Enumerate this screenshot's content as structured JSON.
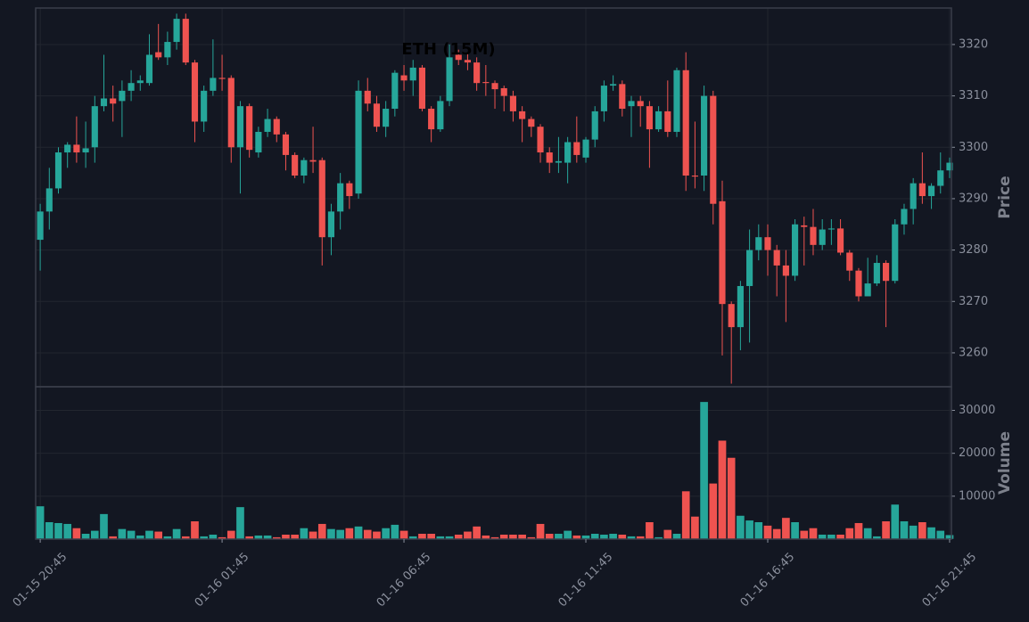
{
  "chart_data": [
    {
      "type": "candlestick",
      "title": "ETH (15M)",
      "ylabel": "Price",
      "up_color": "#26a69a",
      "down_color": "#ef5350",
      "grid": true,
      "ylim": [
        3253.4,
        3327.1
      ],
      "yticks": [
        3260,
        3270,
        3280,
        3290,
        3300,
        3310,
        3320
      ],
      "open": [
        3282,
        3287.5,
        3292,
        3299,
        3300.5,
        3299,
        3300,
        3308,
        3309.5,
        3309,
        3311,
        3312.5,
        3312.5,
        3318.5,
        3317.5,
        3320.5,
        3325,
        3316.5,
        3305,
        3311,
        3313.5,
        3313.5,
        3300,
        3308,
        3299,
        3303,
        3305.5,
        3302.5,
        3298.5,
        3294.5,
        3297.5,
        3297.5,
        3282.5,
        3287.5,
        3293,
        3291,
        3311,
        3308.5,
        3304,
        3307.5,
        3314,
        3313,
        3315.5,
        3307.5,
        3303.5,
        3309,
        3318,
        3317,
        3316.5,
        3312.7,
        3312.5,
        3311.5,
        3310,
        3307,
        3305.5,
        3304,
        3299,
        3297,
        3297,
        3301,
        3298,
        3301.5,
        3307,
        3312,
        3312.3,
        3308,
        3309,
        3308,
        3303.5,
        3307,
        3303,
        3315,
        3294.5,
        3294.5,
        3310,
        3289.5,
        3269.5,
        3265,
        3273,
        3280,
        3282.5,
        3280,
        3277,
        3275,
        3284.8,
        3284.5,
        3281,
        3284,
        3284.2,
        3279.5,
        3276,
        3271,
        3273.5,
        3277.5,
        3274,
        3285,
        3288,
        3293,
        3290.5,
        3292.5,
        3295.5
      ],
      "high": [
        3289,
        3296,
        3300,
        3301,
        3306,
        3305,
        3310,
        3318,
        3312,
        3313,
        3315,
        3314,
        3322,
        3324,
        3322.5,
        3326,
        3326,
        3317,
        3312,
        3321,
        3318,
        3314,
        3309,
        3308.5,
        3304,
        3307.5,
        3306,
        3303,
        3299,
        3298,
        3304,
        3298,
        3289,
        3295,
        3293.5,
        3313,
        3313.5,
        3310,
        3309,
        3315,
        3316,
        3317,
        3316,
        3308,
        3310,
        3320,
        3319,
        3318.5,
        3317.5,
        3316,
        3313,
        3312,
        3311,
        3308,
        3306,
        3304.5,
        3300,
        3302,
        3302,
        3306,
        3302,
        3308,
        3313,
        3314,
        3313,
        3310,
        3310,
        3309,
        3308,
        3313,
        3315.5,
        3318.5,
        3305,
        3312,
        3311,
        3293.5,
        3270,
        3274,
        3284,
        3285,
        3285,
        3281,
        3280,
        3286,
        3286.5,
        3288,
        3286,
        3286,
        3286,
        3280,
        3276.5,
        3278.5,
        3279,
        3278,
        3286,
        3289,
        3294,
        3299,
        3293,
        3299,
        3298
      ],
      "low": [
        3276,
        3284,
        3291,
        3296,
        3297,
        3296,
        3297,
        3307,
        3305,
        3302,
        3309,
        3311,
        3312,
        3317,
        3316,
        3319,
        3316,
        3301,
        3303,
        3310,
        3311,
        3297,
        3291,
        3298,
        3298,
        3302,
        3301,
        3295.5,
        3294,
        3293,
        3295,
        3277,
        3279,
        3284,
        3288,
        3290,
        3307,
        3303,
        3302,
        3306,
        3311,
        3310,
        3307,
        3301,
        3303,
        3308,
        3316,
        3315,
        3311,
        3310,
        3307.5,
        3307,
        3305,
        3301,
        3302,
        3297,
        3295,
        3295,
        3293,
        3297,
        3297,
        3300,
        3305,
        3311,
        3306,
        3302,
        3304,
        3296,
        3303,
        3302,
        3302,
        3291.5,
        3292,
        3291.5,
        3285,
        3259.5,
        3254,
        3260.5,
        3262,
        3278,
        3275,
        3271,
        3266,
        3274,
        3277,
        3279,
        3280,
        3281,
        3279,
        3274,
        3270,
        3271,
        3273,
        3265,
        3273.5,
        3283,
        3285,
        3289,
        3288,
        3291,
        3294
      ],
      "close": [
        3287.5,
        3292,
        3299,
        3300.5,
        3299,
        3299.8,
        3308,
        3309.5,
        3308.5,
        3311,
        3312.5,
        3313,
        3318,
        3317.5,
        3320.5,
        3325,
        3316.5,
        3305,
        3311,
        3313.5,
        3313.3,
        3300,
        3308,
        3299.5,
        3303,
        3305.5,
        3302.5,
        3298.5,
        3294.5,
        3297.5,
        3297.2,
        3282.5,
        3287.5,
        3293,
        3290.5,
        3311,
        3308.5,
        3304,
        3307.5,
        3314.5,
        3313,
        3315.5,
        3307.5,
        3303.5,
        3309,
        3317.5,
        3317,
        3316.5,
        3312.5,
        3312.5,
        3311.3,
        3310,
        3307,
        3305.5,
        3304,
        3299,
        3297,
        3297.3,
        3301,
        3298.5,
        3301.5,
        3307,
        3312,
        3312.3,
        3307.5,
        3309,
        3308,
        3303.5,
        3307,
        3303,
        3315,
        3294.5,
        3294.3,
        3310,
        3289,
        3269.5,
        3265,
        3273,
        3280,
        3282.5,
        3280,
        3277,
        3275,
        3285,
        3284.5,
        3281,
        3284,
        3284.2,
        3279.5,
        3276,
        3271,
        3273.5,
        3277.5,
        3274,
        3285,
        3288,
        3293,
        3290.5,
        3292.5,
        3295.5,
        3297
      ]
    },
    {
      "type": "bar",
      "ylabel": "Volume",
      "grid": true,
      "ylim": [
        0,
        35500
      ],
      "yticks": [
        10000,
        20000,
        30000
      ],
      "xlim": [
        -0.5,
        100.2
      ],
      "xticks": [
        {
          "value": 0,
          "label": "01-15 20:45"
        },
        {
          "value": 20,
          "label": "01-16 01:45"
        },
        {
          "value": 40,
          "label": "01-16 06:45"
        },
        {
          "value": 60,
          "label": "01-16 11:45"
        },
        {
          "value": 80,
          "label": "01-16 16:45"
        },
        {
          "value": 100,
          "label": "01-16 21:45"
        }
      ],
      "values": [
        7700,
        4000,
        3800,
        3600,
        2600,
        1300,
        2000,
        5900,
        700,
        2400,
        2000,
        900,
        2000,
        1800,
        700,
        2400,
        700,
        4200,
        700,
        1100,
        500,
        2000,
        7500,
        700,
        900,
        900,
        500,
        1100,
        1100,
        2600,
        1800,
        3600,
        2400,
        2200,
        2600,
        3000,
        2200,
        1800,
        2600,
        3400,
        2000,
        700,
        1300,
        1300,
        700,
        700,
        1100,
        1800,
        3000,
        900,
        500,
        1100,
        1100,
        1100,
        500,
        3600,
        1300,
        1300,
        2000,
        900,
        900,
        1300,
        1100,
        1300,
        1100,
        700,
        700,
        4000,
        500,
        2200,
        1300,
        11200,
        5300,
        32000,
        13000,
        23000,
        19000,
        5500,
        4400,
        4000,
        3200,
        2400,
        5000,
        4000,
        2000,
        2600,
        1100,
        1100,
        1100,
        2600,
        3800,
        2600,
        700,
        4200,
        8100,
        4200,
        3200,
        4000,
        2800,
        2000,
        1000
      ]
    }
  ]
}
